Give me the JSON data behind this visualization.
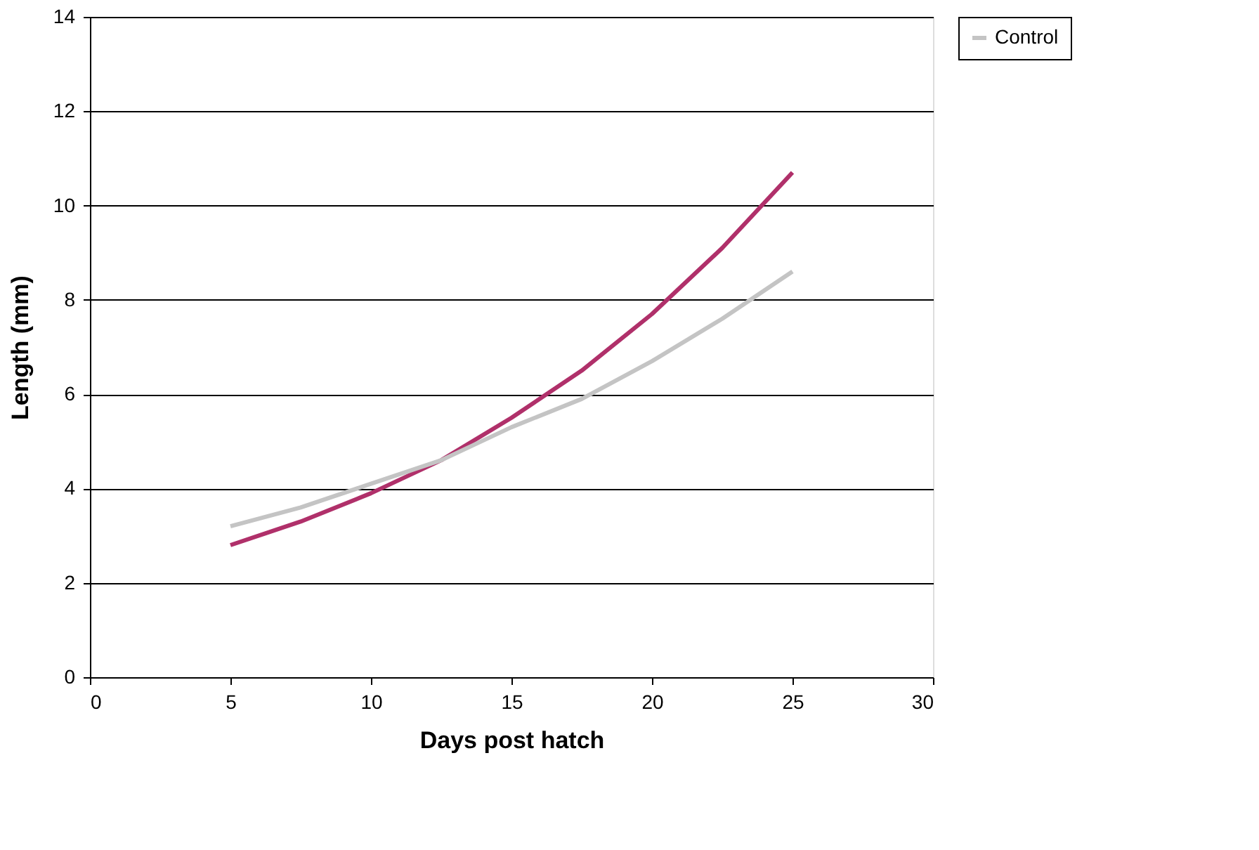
{
  "chart_data": {
    "type": "line",
    "xlabel": "Days post hatch",
    "ylabel": "Length (mm)",
    "x": [
      5,
      7.5,
      10,
      12.5,
      15,
      17.5,
      20,
      22.5,
      25
    ],
    "series": [
      {
        "color": "#b0306a",
        "values": [
          2.8,
          3.3,
          3.9,
          4.6,
          5.5,
          6.5,
          7.7,
          9.1,
          10.7
        ]
      },
      {
        "name": "Control",
        "color": "#c4c4c4",
        "values": [
          3.2,
          3.6,
          4.1,
          4.6,
          5.3,
          5.9,
          6.7,
          7.6,
          8.6
        ]
      }
    ],
    "xlim": [
      0,
      30
    ],
    "xticks": [
      0,
      5,
      10,
      15,
      20,
      25,
      30
    ],
    "ylim": [
      0,
      14
    ],
    "yticks": [
      0,
      2,
      4,
      6,
      8,
      10,
      12,
      14
    ],
    "grid": "y",
    "legend": "right",
    "marker": "none",
    "line_style": "solid"
  }
}
